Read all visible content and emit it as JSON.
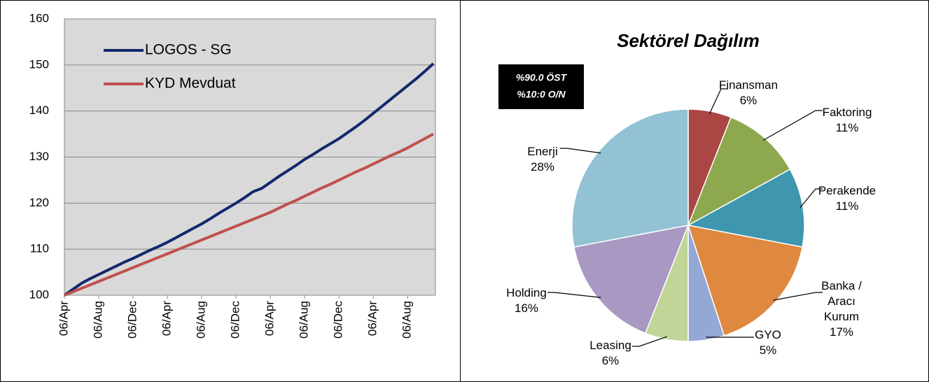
{
  "chart_data": [
    {
      "type": "line",
      "categories": [
        "06/Apr",
        null,
        null,
        null,
        "06/Aug",
        null,
        null,
        null,
        "06/Dec",
        null,
        null,
        null,
        "06/Apr",
        null,
        null,
        null,
        "06/Aug",
        null,
        null,
        null,
        "06/Dec",
        null,
        null,
        null,
        "06/Apr",
        null,
        null,
        null,
        "06/Aug",
        null,
        null,
        null,
        "06/Dec",
        null,
        null,
        null,
        "06/Apr",
        null,
        null,
        null,
        "06/Aug",
        null,
        null,
        null
      ],
      "series": [
        {
          "name": "LOGOS - SG",
          "color": "#14286b",
          "values": [
            100,
            101.3,
            102.6,
            103.6,
            104.5,
            105.4,
            106.3,
            107.2,
            108.0,
            108.9,
            109.8,
            110.6,
            111.5,
            112.5,
            113.5,
            114.5,
            115.5,
            116.6,
            117.8,
            118.9,
            120.0,
            121.2,
            122.5,
            123.2,
            124.5,
            125.8,
            127.0,
            128.2,
            129.5,
            130.6,
            131.8,
            132.9,
            134.0,
            135.3,
            136.6,
            138.0,
            139.5,
            141.0,
            142.5,
            144.0,
            145.5,
            147.0,
            148.6,
            150.3
          ]
        },
        {
          "name": "KYD Mevduat",
          "color": "#c0504d",
          "values": [
            100,
            100.75,
            101.5,
            102.25,
            103,
            103.75,
            104.5,
            105.25,
            106,
            106.75,
            107.5,
            108.25,
            109,
            109.75,
            110.5,
            111.25,
            112,
            112.75,
            113.5,
            114.25,
            115,
            115.75,
            116.5,
            117.25,
            118,
            118.9,
            119.8,
            120.6,
            121.5,
            122.4,
            123.3,
            124.1,
            125,
            125.9,
            126.8,
            127.6,
            128.5,
            129.4,
            130.3,
            131.1,
            132,
            133,
            134,
            135
          ]
        }
      ],
      "ylim": [
        100,
        160
      ],
      "yticks": [
        100,
        110,
        120,
        130,
        140,
        150,
        160
      ],
      "grid": true,
      "legend": "upper left"
    },
    {
      "type": "pie",
      "title": "Sektörel Dağılım",
      "annotations": [
        "%90.0 ÖST",
        "%10:0 O/N"
      ],
      "categories": [
        "Finansman",
        "Faktoring",
        "Perakende",
        "Banka / Aracı Kurum",
        "GYO",
        "Leasing",
        "Holding",
        "Enerji"
      ],
      "values": [
        6,
        11,
        11,
        17,
        5,
        6,
        16,
        28
      ],
      "value_labels": [
        "6%",
        "11%",
        "11%",
        "17%",
        "5%",
        "6%",
        "16%",
        "28%"
      ],
      "colors": [
        "#aa4643",
        "#8ea84f",
        "#3e97ae",
        "#de8840",
        "#93a8d5",
        "#c0d597",
        "#a898c2",
        "#92c2d4"
      ]
    }
  ]
}
